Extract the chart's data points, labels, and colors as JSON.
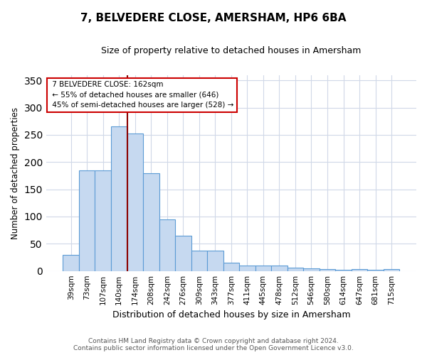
{
  "title": "7, BELVEDERE CLOSE, AMERSHAM, HP6 6BA",
  "subtitle": "Size of property relative to detached houses in Amersham",
  "xlabel": "Distribution of detached houses by size in Amersham",
  "ylabel": "Number of detached properties",
  "footer_line1": "Contains HM Land Registry data © Crown copyright and database right 2024.",
  "footer_line2": "Contains public sector information licensed under the Open Government Licence v3.0.",
  "categories": [
    "39sqm",
    "73sqm",
    "107sqm",
    "140sqm",
    "174sqm",
    "208sqm",
    "242sqm",
    "276sqm",
    "309sqm",
    "343sqm",
    "377sqm",
    "411sqm",
    "445sqm",
    "478sqm",
    "512sqm",
    "546sqm",
    "580sqm",
    "614sqm",
    "647sqm",
    "681sqm",
    "715sqm"
  ],
  "values": [
    30,
    185,
    185,
    265,
    253,
    180,
    95,
    65,
    38,
    38,
    15,
    10,
    10,
    10,
    6,
    5,
    3,
    2,
    3,
    2,
    3
  ],
  "bar_color": "#c6d9f0",
  "bar_edge_color": "#5b9bd5",
  "property_label": "7 BELVEDERE CLOSE: 162sqm",
  "pct_smaller": "55% of detached houses are smaller (646)",
  "pct_larger": "45% of semi-detached houses are larger (528)",
  "vline_color": "#8b0000",
  "annotation_box_color": "#ffffff",
  "annotation_box_edge": "#cc0000",
  "ylim": [
    0,
    360
  ],
  "yticks": [
    0,
    50,
    100,
    150,
    200,
    250,
    300,
    350
  ],
  "background_color": "#ffffff",
  "grid_color": "#d0d8e8"
}
